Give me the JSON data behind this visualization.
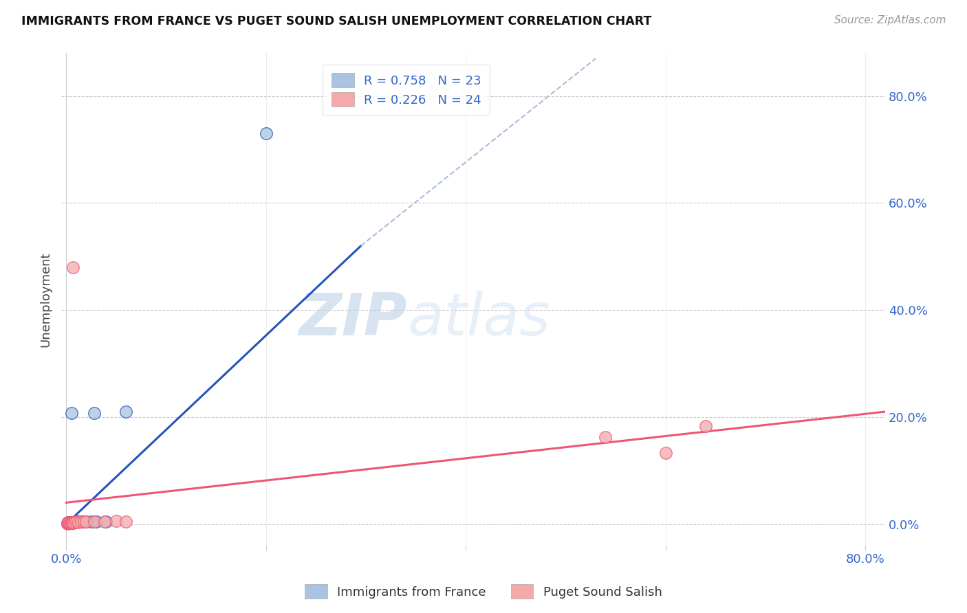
{
  "title": "IMMIGRANTS FROM FRANCE VS PUGET SOUND SALISH UNEMPLOYMENT CORRELATION CHART",
  "source": "Source: ZipAtlas.com",
  "ylabel": "Unemployment",
  "right_ytick_labels": [
    "80.0%",
    "60.0%",
    "40.0%",
    "20.0%",
    "0.0%"
  ],
  "right_ytick_values": [
    0.8,
    0.6,
    0.4,
    0.2,
    0.0
  ],
  "xlim": [
    -0.005,
    0.82
  ],
  "ylim": [
    -0.04,
    0.88
  ],
  "blue_color": "#A8C4E0",
  "pink_color": "#F4AAAA",
  "blue_line_color": "#2255BB",
  "pink_line_color": "#EE5577",
  "blue_scatter": [
    [
      0.001,
      0.002
    ],
    [
      0.002,
      0.003
    ],
    [
      0.002,
      0.002
    ],
    [
      0.003,
      0.002
    ],
    [
      0.003,
      0.003
    ],
    [
      0.004,
      0.002
    ],
    [
      0.004,
      0.003
    ],
    [
      0.005,
      0.003
    ],
    [
      0.006,
      0.002
    ],
    [
      0.007,
      0.003
    ],
    [
      0.008,
      0.003
    ],
    [
      0.01,
      0.004
    ],
    [
      0.012,
      0.004
    ],
    [
      0.015,
      0.004
    ],
    [
      0.018,
      0.004
    ],
    [
      0.02,
      0.005
    ],
    [
      0.025,
      0.005
    ],
    [
      0.03,
      0.005
    ],
    [
      0.04,
      0.004
    ],
    [
      0.005,
      0.207
    ],
    [
      0.028,
      0.208
    ],
    [
      0.06,
      0.21
    ],
    [
      0.2,
      0.73
    ]
  ],
  "pink_scatter": [
    [
      0.001,
      0.001
    ],
    [
      0.001,
      0.002
    ],
    [
      0.002,
      0.002
    ],
    [
      0.002,
      0.003
    ],
    [
      0.003,
      0.002
    ],
    [
      0.003,
      0.003
    ],
    [
      0.004,
      0.002
    ],
    [
      0.005,
      0.003
    ],
    [
      0.005,
      0.002
    ],
    [
      0.006,
      0.003
    ],
    [
      0.007,
      0.002
    ],
    [
      0.008,
      0.003
    ],
    [
      0.01,
      0.004
    ],
    [
      0.012,
      0.003
    ],
    [
      0.015,
      0.005
    ],
    [
      0.018,
      0.004
    ],
    [
      0.02,
      0.005
    ],
    [
      0.028,
      0.005
    ],
    [
      0.038,
      0.004
    ],
    [
      0.05,
      0.006
    ],
    [
      0.06,
      0.005
    ],
    [
      0.007,
      0.48
    ],
    [
      0.54,
      0.163
    ],
    [
      0.64,
      0.183
    ],
    [
      0.6,
      0.133
    ]
  ],
  "blue_line_x": [
    0.0,
    0.295
  ],
  "blue_line_y": [
    0.0,
    0.52
  ],
  "dash_line_x": [
    0.295,
    0.53
  ],
  "dash_line_y": [
    0.52,
    0.87
  ],
  "pink_line_x": [
    0.0,
    0.82
  ],
  "pink_line_y": [
    0.04,
    0.21
  ],
  "watermark_zip": "ZIP",
  "watermark_atlas": "atlas",
  "background_color": "#FFFFFF",
  "grid_color": "#CCCCCC"
}
